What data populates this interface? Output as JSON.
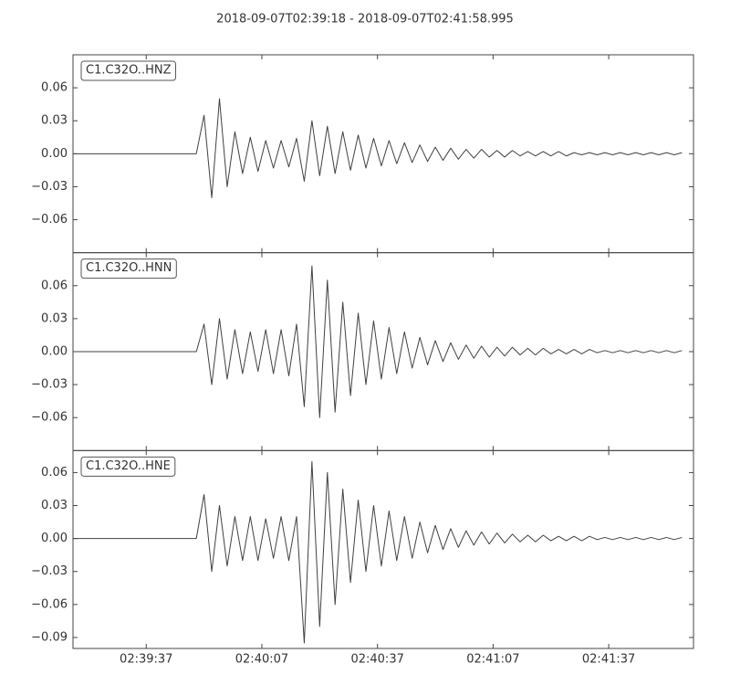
{
  "chart_data": {
    "type": "line",
    "title": "2018-09-07T02:39:18  -  2018-09-07T02:41:58.995",
    "xlim": [
      "2018-09-07T02:39:18",
      "2018-09-07T02:41:58.995"
    ],
    "xticks": [
      "02:39:37",
      "02:40:07",
      "02:40:37",
      "02:41:07",
      "02:41:37"
    ],
    "x": [
      "02:39:18",
      "02:39:20",
      "02:39:22",
      "02:39:24",
      "02:39:26",
      "02:39:28",
      "02:39:30",
      "02:39:32",
      "02:39:34",
      "02:39:36",
      "02:39:38",
      "02:39:40",
      "02:39:42",
      "02:39:44",
      "02:39:46",
      "02:39:48",
      "02:39:50",
      "02:39:52",
      "02:39:54",
      "02:39:56",
      "02:39:58",
      "02:40:00",
      "02:40:02",
      "02:40:04",
      "02:40:06",
      "02:40:08",
      "02:40:10",
      "02:40:12",
      "02:40:14",
      "02:40:16",
      "02:40:18",
      "02:40:20",
      "02:40:22",
      "02:40:24",
      "02:40:26",
      "02:40:28",
      "02:40:30",
      "02:40:32",
      "02:40:34",
      "02:40:36",
      "02:40:38",
      "02:40:40",
      "02:40:42",
      "02:40:44",
      "02:40:46",
      "02:40:48",
      "02:40:50",
      "02:40:52",
      "02:40:54",
      "02:40:56",
      "02:40:58",
      "02:41:00",
      "02:41:02",
      "02:41:04",
      "02:41:06",
      "02:41:08",
      "02:41:10",
      "02:41:12",
      "02:41:14",
      "02:41:16",
      "02:41:18",
      "02:41:20",
      "02:41:22",
      "02:41:24",
      "02:41:26",
      "02:41:28",
      "02:41:30",
      "02:41:32",
      "02:41:34",
      "02:41:36",
      "02:41:38",
      "02:41:40",
      "02:41:42",
      "02:41:44",
      "02:41:46",
      "02:41:48",
      "02:41:50",
      "02:41:52",
      "02:41:54",
      "02:41:56"
    ],
    "series": [
      {
        "name": "C1.C32O..HNZ",
        "color": "#404040",
        "ylim": [
          -0.09,
          0.09
        ],
        "yticks": [
          {
            "value": -0.06,
            "label": "−0.06"
          },
          {
            "value": -0.03,
            "label": "−0.03"
          },
          {
            "value": 0,
            "label": "0.00"
          },
          {
            "value": 0.03,
            "label": "0.03"
          },
          {
            "value": 0.06,
            "label": "0.06"
          }
        ],
        "values": [
          0,
          0,
          0,
          0,
          0,
          0,
          0,
          0,
          0,
          0,
          0,
          0,
          0,
          0,
          0,
          0,
          0,
          0.035,
          -0.04,
          0.05,
          -0.03,
          0.02,
          -0.018,
          0.015,
          -0.016,
          0.012,
          -0.013,
          0.012,
          -0.012,
          0.014,
          -0.025,
          0.03,
          -0.02,
          0.025,
          -0.018,
          0.02,
          -0.015,
          0.017,
          -0.013,
          0.014,
          -0.011,
          0.012,
          -0.009,
          0.01,
          -0.008,
          0.008,
          -0.007,
          0.006,
          -0.006,
          0.005,
          -0.005,
          0.004,
          -0.004,
          0.004,
          -0.003,
          0.003,
          -0.003,
          0.003,
          -0.002,
          0.002,
          -0.002,
          0.002,
          -0.002,
          0.002,
          -0.002,
          0.001,
          -0.001,
          0.001,
          -0.001,
          0.001,
          -0.001,
          0.001,
          -0.001,
          0.001,
          -0.001,
          0.001,
          -0.001,
          0.001,
          -0.001,
          0.001
        ]
      },
      {
        "name": "C1.C32O..HNN",
        "color": "#404040",
        "ylim": [
          -0.09,
          0.09
        ],
        "yticks": [
          {
            "value": -0.06,
            "label": "−0.06"
          },
          {
            "value": -0.03,
            "label": "−0.03"
          },
          {
            "value": 0,
            "label": "0.00"
          },
          {
            "value": 0.03,
            "label": "0.03"
          },
          {
            "value": 0.06,
            "label": "0.06"
          }
        ],
        "values": [
          0,
          0,
          0,
          0,
          0,
          0,
          0,
          0,
          0,
          0,
          0,
          0,
          0,
          0,
          0,
          0,
          0,
          0.025,
          -0.03,
          0.03,
          -0.025,
          0.02,
          -0.02,
          0.018,
          -0.018,
          0.02,
          -0.02,
          0.02,
          -0.022,
          0.025,
          -0.05,
          0.078,
          -0.06,
          0.065,
          -0.055,
          0.045,
          -0.04,
          0.035,
          -0.03,
          0.028,
          -0.025,
          0.022,
          -0.02,
          0.018,
          -0.015,
          0.013,
          -0.012,
          0.01,
          -0.009,
          0.008,
          -0.007,
          0.006,
          -0.006,
          0.005,
          -0.005,
          0.004,
          -0.004,
          0.004,
          -0.003,
          0.003,
          -0.003,
          0.003,
          -0.002,
          0.002,
          -0.002,
          0.002,
          -0.002,
          0.002,
          -0.001,
          0.001,
          -0.001,
          0.001,
          -0.001,
          0.001,
          -0.001,
          0.001,
          -0.001,
          0.001,
          -0.001,
          0.001
        ]
      },
      {
        "name": "C1.C32O..HNE",
        "color": "#404040",
        "ylim": [
          -0.1,
          0.08
        ],
        "yticks": [
          {
            "value": -0.09,
            "label": "−0.09"
          },
          {
            "value": -0.06,
            "label": "−0.06"
          },
          {
            "value": -0.03,
            "label": "−0.03"
          },
          {
            "value": 0,
            "label": "0.00"
          },
          {
            "value": 0.03,
            "label": "0.03"
          },
          {
            "value": 0.06,
            "label": "0.06"
          }
        ],
        "values": [
          0,
          0,
          0,
          0,
          0,
          0,
          0,
          0,
          0,
          0,
          0,
          0,
          0,
          0,
          0,
          0,
          0,
          0.04,
          -0.03,
          0.03,
          -0.025,
          0.02,
          -0.02,
          0.02,
          -0.02,
          0.018,
          -0.018,
          0.02,
          -0.02,
          0.02,
          -0.095,
          0.07,
          -0.08,
          0.06,
          -0.06,
          0.045,
          -0.04,
          0.035,
          -0.03,
          0.03,
          -0.025,
          0.025,
          -0.02,
          0.02,
          -0.018,
          0.015,
          -0.013,
          0.012,
          -0.01,
          0.009,
          -0.008,
          0.007,
          -0.006,
          0.006,
          -0.005,
          0.005,
          -0.004,
          0.004,
          -0.003,
          0.003,
          -0.003,
          0.003,
          -0.002,
          0.002,
          -0.002,
          0.002,
          -0.002,
          0.002,
          -0.001,
          0.001,
          -0.001,
          0.001,
          -0.001,
          0.001,
          -0.001,
          0.001,
          -0.001,
          0.001,
          -0.001,
          0.001
        ]
      }
    ]
  }
}
